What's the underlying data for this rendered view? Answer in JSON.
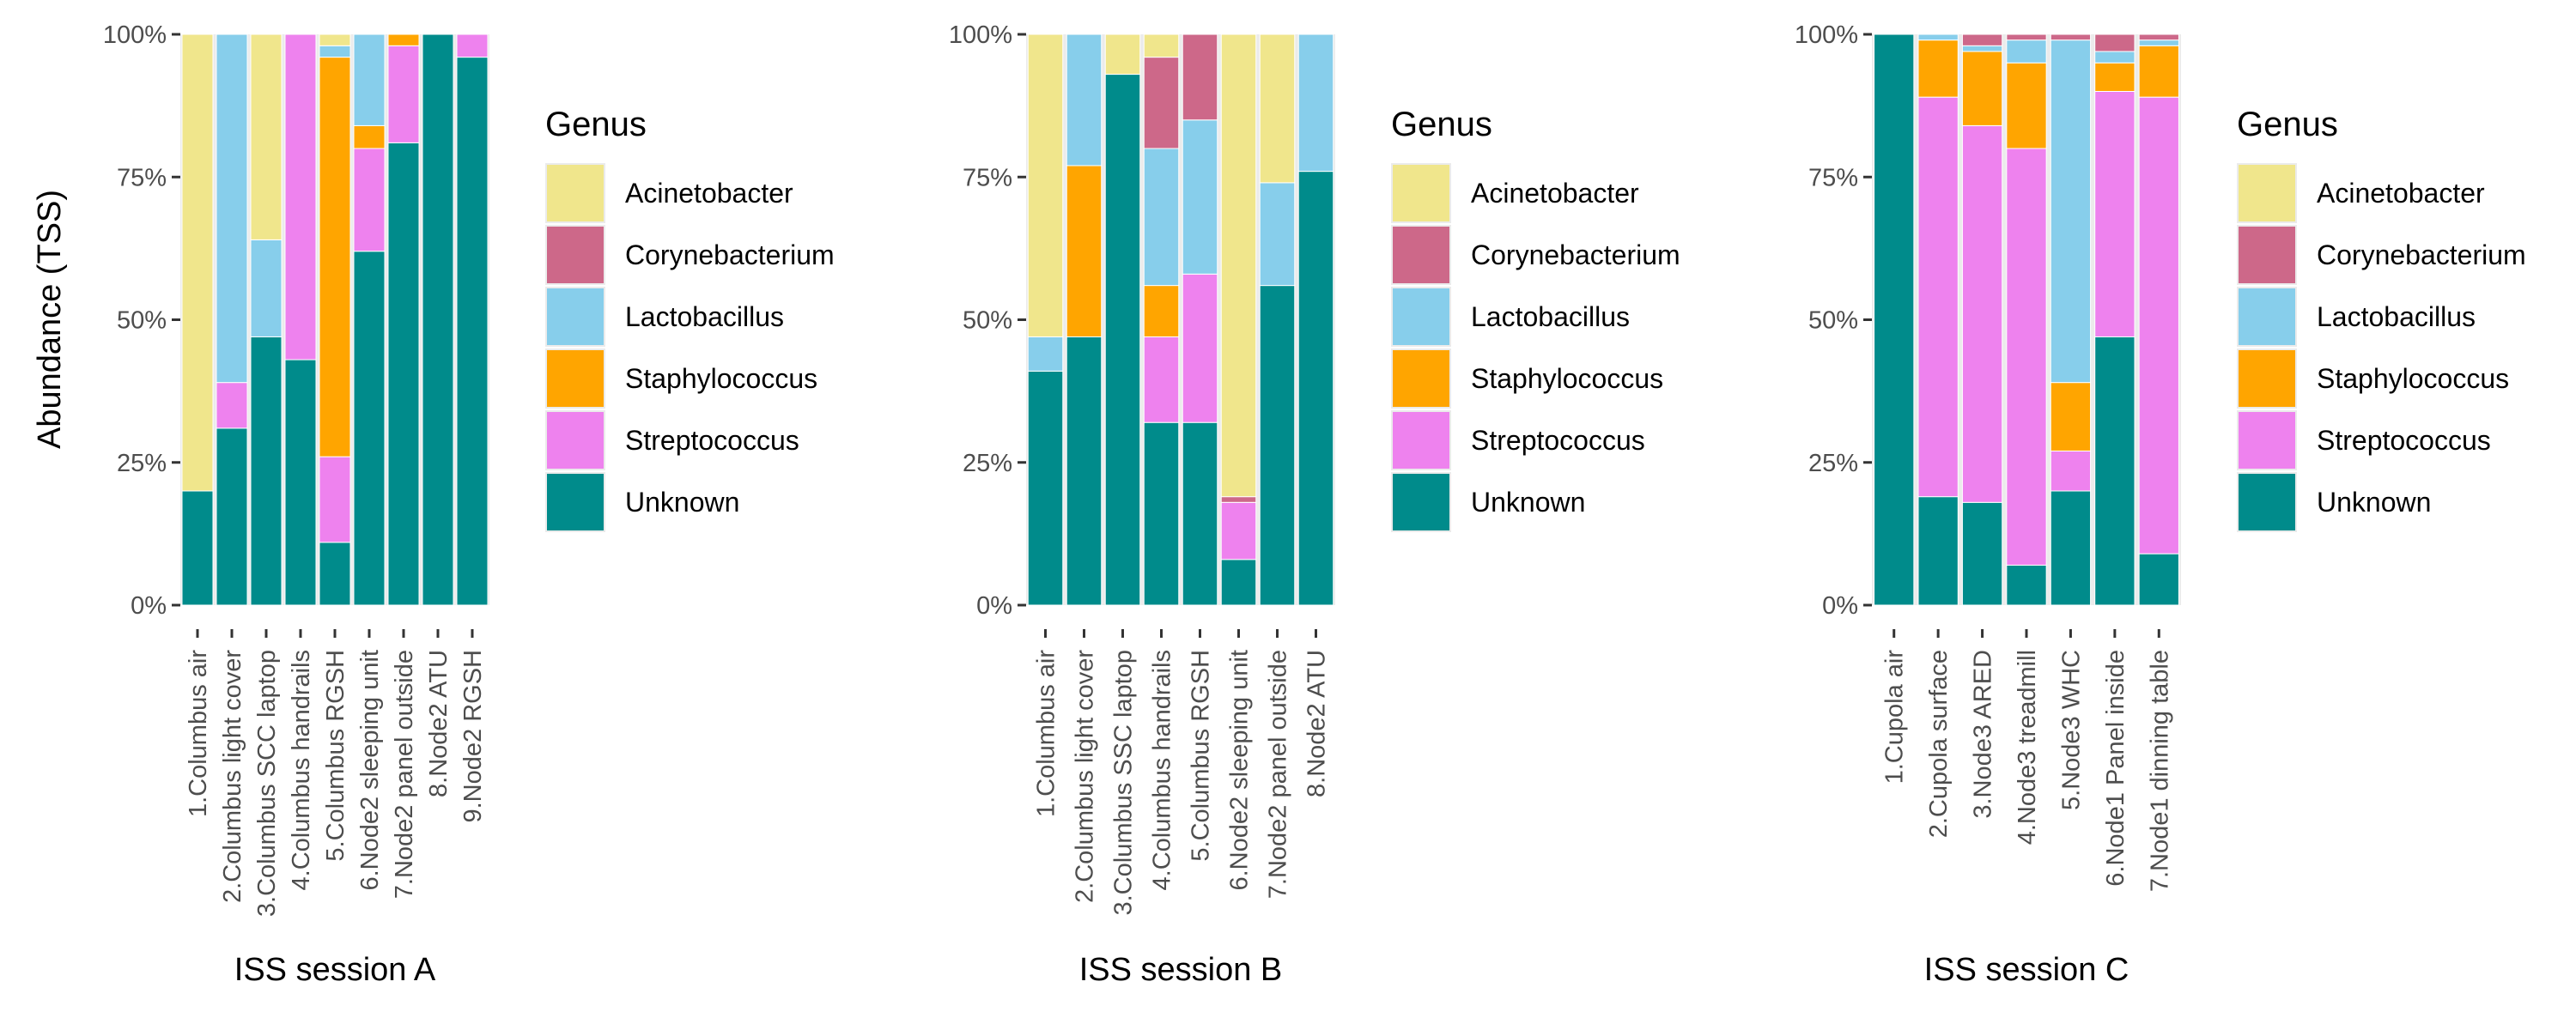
{
  "chart_data": {
    "type": "bar",
    "stacked": true,
    "ylabel": "Abundance (TSS)",
    "ylim": [
      0,
      100
    ],
    "y_ticks": [
      "0%",
      "25%",
      "50%",
      "75%",
      "100%"
    ],
    "grid": true,
    "legend_position": "right",
    "legend_title": "Genus",
    "genera": [
      "Acinetobacter",
      "Corynebacterium",
      "Lactobacillus",
      "Staphylococcus",
      "Streptococcus",
      "Unknown"
    ],
    "colors": {
      "Acinetobacter": "#F0E68C",
      "Corynebacterium": "#CD6889",
      "Lactobacillus": "#87CEEB",
      "Staphylococcus": "#FFA500",
      "Streptococcus": "#EE82EE",
      "Unknown": "#008B8B"
    },
    "panels": [
      {
        "xlabel": "ISS session A",
        "categories": [
          "1.Columbus air",
          "2.Columbus light cover",
          "3.Columbus SCC laptop",
          "4.Columbus handrails",
          "5.Columbus RGSH",
          "6.Node2 sleeping unit",
          "7.Node2 panel outside",
          "8.Node2 ATU",
          "9.Node2 RGSH"
        ],
        "series": [
          {
            "name": "Unknown",
            "values": [
              20,
              31,
              47,
              43,
              11,
              62,
              81,
              100,
              96
            ]
          },
          {
            "name": "Streptococcus",
            "values": [
              0,
              8,
              0,
              57,
              15,
              18,
              17,
              0,
              4
            ]
          },
          {
            "name": "Staphylococcus",
            "values": [
              0,
              0,
              0,
              0,
              70,
              4,
              2,
              0,
              0
            ]
          },
          {
            "name": "Lactobacillus",
            "values": [
              0,
              61,
              17,
              0,
              2,
              16,
              0,
              0,
              0
            ]
          },
          {
            "name": "Corynebacterium",
            "values": [
              0,
              0,
              0,
              0,
              0,
              0,
              0,
              0,
              0
            ]
          },
          {
            "name": "Acinetobacter",
            "values": [
              80,
              0,
              36,
              0,
              2,
              0,
              0,
              0,
              0
            ]
          }
        ]
      },
      {
        "xlabel": "ISS session B",
        "categories": [
          "1.Columbus air",
          "2.Columbus light cover",
          "3.Columbus SSC laptop",
          "4.Columbus handrails",
          "5.Columbus RGSH",
          "6.Node2 sleeping unit",
          "7.Node2 panel outside",
          "8.Node2 ATU"
        ],
        "series": [
          {
            "name": "Unknown",
            "values": [
              41,
              47,
              93,
              32,
              32,
              8,
              56,
              76
            ]
          },
          {
            "name": "Streptococcus",
            "values": [
              0,
              0,
              0,
              15,
              26,
              10,
              0,
              0
            ]
          },
          {
            "name": "Staphylococcus",
            "values": [
              0,
              30,
              0,
              9,
              0,
              0,
              0,
              0
            ]
          },
          {
            "name": "Lactobacillus",
            "values": [
              6,
              23,
              0,
              24,
              27,
              0,
              18,
              24
            ]
          },
          {
            "name": "Corynebacterium",
            "values": [
              0,
              0,
              0,
              16,
              15,
              1,
              0,
              0
            ]
          },
          {
            "name": "Acinetobacter",
            "values": [
              53,
              0,
              7,
              4,
              0,
              81,
              26,
              0
            ]
          }
        ]
      },
      {
        "xlabel": "ISS session C",
        "categories": [
          "1.Cupola air",
          "2.Cupola surface",
          "3.Node3 ARED",
          "4.Node3 treadmill",
          "5.Node3 WHC",
          "6.Node1 Panel inside",
          "7.Node1 dinning table"
        ],
        "series": [
          {
            "name": "Unknown",
            "values": [
              100,
              19,
              18,
              7,
              20,
              47,
              9
            ]
          },
          {
            "name": "Streptococcus",
            "values": [
              0,
              70,
              66,
              73,
              7,
              43,
              80
            ]
          },
          {
            "name": "Staphylococcus",
            "values": [
              0,
              10,
              13,
              15,
              12,
              5,
              9
            ]
          },
          {
            "name": "Lactobacillus",
            "values": [
              0,
              1,
              1,
              4,
              60,
              2,
              1
            ]
          },
          {
            "name": "Corynebacterium",
            "values": [
              0,
              0,
              2,
              1,
              1,
              3,
              1
            ]
          },
          {
            "name": "Acinetobacter",
            "values": [
              0,
              0,
              0,
              0,
              0,
              0,
              0
            ]
          }
        ]
      }
    ]
  }
}
